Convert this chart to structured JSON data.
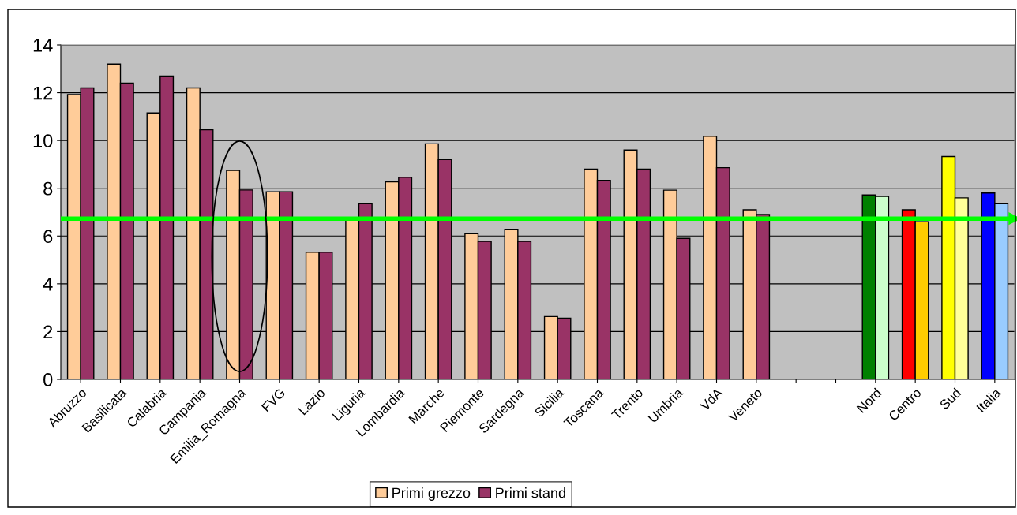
{
  "chart_data": {
    "type": "bar",
    "categories": [
      "Abruzzo",
      "Basilicata",
      "Calabria",
      "Campania",
      "Emilia_Romagna",
      "FVG",
      "Lazio",
      "Liguria",
      "Lombardia",
      "Marche",
      "Piemonte",
      "Sardegna",
      "Sicilia",
      "Toscana",
      "Trento",
      "Umbria",
      "VdA",
      "Veneto",
      null,
      null,
      "Nord",
      "Centro",
      "Sud",
      "Italia"
    ],
    "series": [
      {
        "name": "Primi grezzo",
        "color": "#ffcc99",
        "colors": [
          "#ffcc99",
          "#ffcc99",
          "#ffcc99",
          "#ffcc99",
          "#ffcc99",
          "#ffcc99",
          "#ffcc99",
          "#ffcc99",
          "#ffcc99",
          "#ffcc99",
          "#ffcc99",
          "#ffcc99",
          "#ffcc99",
          "#ffcc99",
          "#ffcc99",
          "#ffcc99",
          "#ffcc99",
          "#ffcc99",
          null,
          null,
          "#008000",
          "#ff0000",
          "#ffff00",
          "#0000ff"
        ],
        "values": [
          11.92,
          13.2,
          11.15,
          12.2,
          8.75,
          7.85,
          5.32,
          6.75,
          8.27,
          9.86,
          6.1,
          6.28,
          2.63,
          8.8,
          9.6,
          7.92,
          10.18,
          7.1,
          null,
          null,
          7.72,
          7.1,
          9.33,
          7.8
        ]
      },
      {
        "name": "Primi stand",
        "color": "#993366",
        "colors": [
          "#993366",
          "#993366",
          "#993366",
          "#993366",
          "#993366",
          "#993366",
          "#993366",
          "#993366",
          "#993366",
          "#993366",
          "#993366",
          "#993366",
          "#993366",
          "#993366",
          "#993366",
          "#993366",
          "#993366",
          "#993366",
          null,
          null,
          "#ccffcc",
          "#ffcc00",
          "#ffff99",
          "#99ccff"
        ],
        "values": [
          12.2,
          12.4,
          12.7,
          10.45,
          7.93,
          7.85,
          5.32,
          7.35,
          8.46,
          9.2,
          5.78,
          5.78,
          2.56,
          8.33,
          8.8,
          5.9,
          8.86,
          6.9,
          null,
          null,
          7.66,
          6.6,
          7.6,
          7.35
        ]
      }
    ],
    "ylim": [
      0,
      14
    ],
    "yticks": [
      0,
      2,
      4,
      6,
      8,
      10,
      12,
      14
    ],
    "grid": "y",
    "legend": "bottom",
    "ref_lines": [
      {
        "axis": "y",
        "value": 6.73,
        "color": "#00ff00",
        "line_style": "solid"
      }
    ]
  }
}
